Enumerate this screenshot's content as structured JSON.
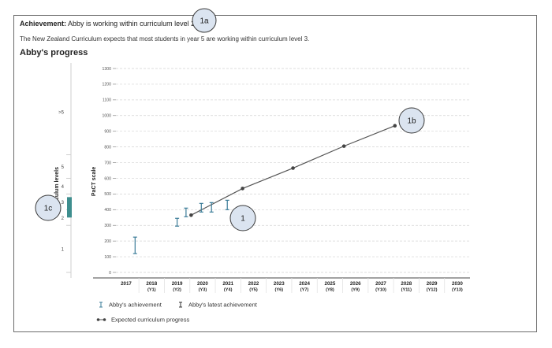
{
  "header": {
    "achievement_label": "Achievement:",
    "achievement_text": "Abby is working within curriculum level 2.",
    "expectation": "The New Zealand Curriculum expects that most students in year 5 are working within curriculum level 3.",
    "progress_heading": "Abby's progress"
  },
  "callouts": [
    "1a",
    "1b",
    "1c",
    "1"
  ],
  "colors": {
    "achievement": "#3b7c98",
    "latest_achievement": "#333333",
    "expected_line": "#555555",
    "current_level_bar": "#3e8e8e",
    "callout_fill": "#dbe4f0",
    "callout_stroke": "#3a3a3a"
  },
  "chart_data": {
    "type": "line",
    "ylabel": "PaCT scale",
    "ylim": [
      0,
      1300
    ],
    "yticks": [
      0,
      100,
      200,
      300,
      400,
      500,
      600,
      700,
      800,
      900,
      1000,
      1100,
      1200,
      1300
    ],
    "x_ticks": [
      {
        "year": "2017",
        "label": ""
      },
      {
        "year": "2018",
        "label": "(Y1)"
      },
      {
        "year": "2019",
        "label": "(Y2)"
      },
      {
        "year": "2020",
        "label": "(Y3)"
      },
      {
        "year": "2021",
        "label": "(Y4)"
      },
      {
        "year": "2022",
        "label": "(Y5)"
      },
      {
        "year": "2023",
        "label": "(Y6)"
      },
      {
        "year": "2024",
        "label": "(Y7)"
      },
      {
        "year": "2025",
        "label": "(Y8)"
      },
      {
        "year": "2026",
        "label": "(Y9)"
      },
      {
        "year": "2027",
        "label": "(Y10)"
      },
      {
        "year": "2028",
        "label": "(Y11)"
      },
      {
        "year": "2029",
        "label": "(Y12)"
      },
      {
        "year": "2030",
        "label": "(Y13)"
      }
    ],
    "grid": "horizontal dashed",
    "curriculum_levels": {
      "axis_label": "Curriculum levels",
      "levels": [
        {
          "label": "1",
          "low": 0,
          "high": 300
        },
        {
          "label": "2",
          "low": 300,
          "high": 400
        },
        {
          "label": "3",
          "low": 400,
          "high": 500
        },
        {
          "label": "4",
          "low": 500,
          "high": 600
        },
        {
          "label": "5",
          "low": 600,
          "high": 750
        },
        {
          "label": ">5",
          "low": 750,
          "high": 1300
        }
      ],
      "current_level_range": [
        350,
        480
      ]
    },
    "achievement": {
      "name": "Abby's achievement",
      "points": [
        {
          "x": 2017.35,
          "low": 120,
          "high": 225
        },
        {
          "x": 2019.0,
          "low": 295,
          "high": 345
        },
        {
          "x": 2019.35,
          "low": 355,
          "high": 410
        },
        {
          "x": 2019.95,
          "low": 385,
          "high": 440
        },
        {
          "x": 2020.35,
          "low": 385,
          "high": 445
        }
      ]
    },
    "latest_achievement": {
      "name": "Abby's latest achievement",
      "points": [
        {
          "x": 2020.97,
          "low": 400,
          "high": 460
        }
      ]
    },
    "expected_progress": {
      "name": "Expected curriculum progress",
      "points": [
        {
          "x": 2019.55,
          "y": 365
        },
        {
          "x": 2021.57,
          "y": 535
        },
        {
          "x": 2023.55,
          "y": 665
        },
        {
          "x": 2025.55,
          "y": 805
        },
        {
          "x": 2027.55,
          "y": 935
        }
      ]
    }
  }
}
